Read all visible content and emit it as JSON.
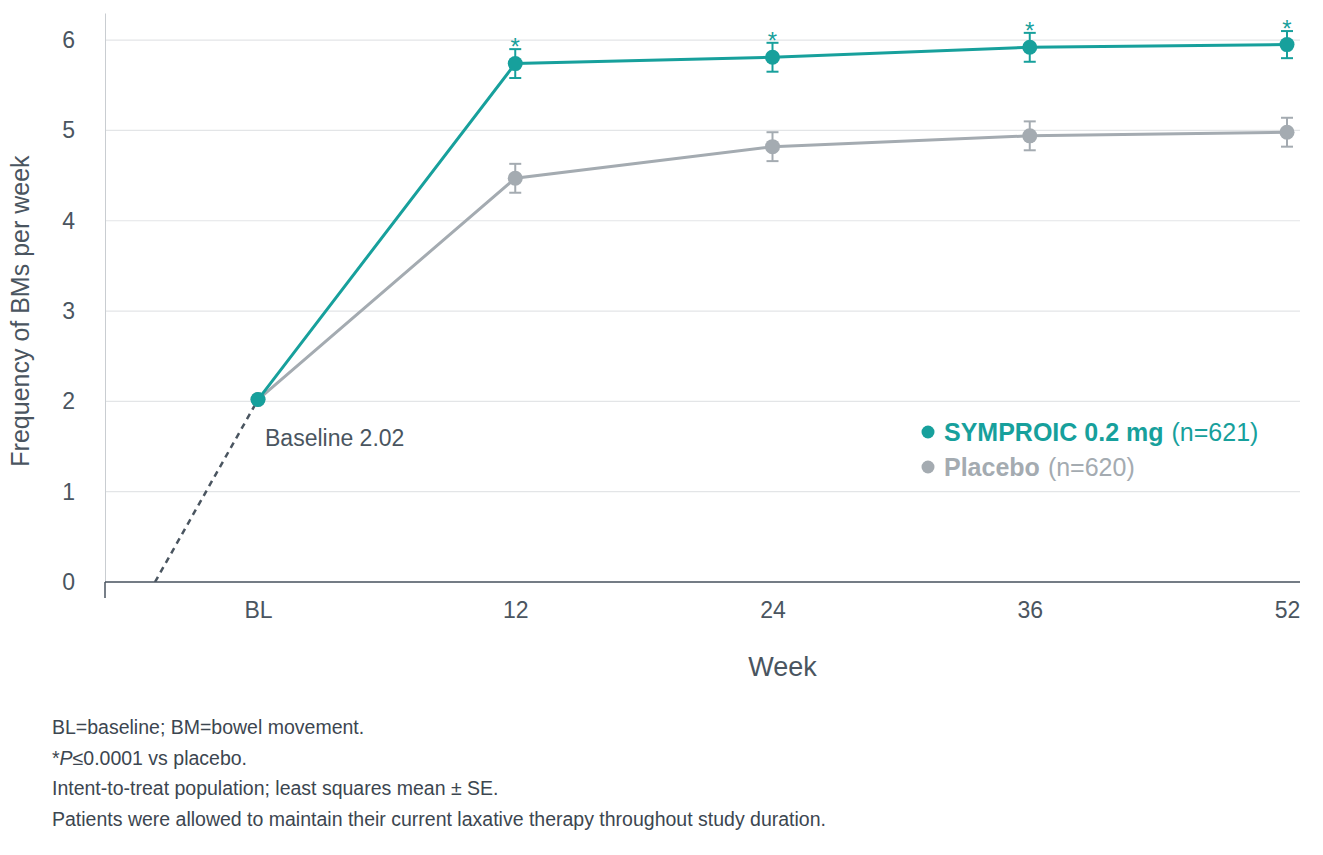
{
  "chart_data": {
    "type": "line",
    "x_label": "Week",
    "y_label": "Frequency of BMs per week",
    "categories": [
      "BL",
      "12",
      "24",
      "36",
      "52"
    ],
    "series": [
      {
        "name": "SYMPROIC 0.2 mg",
        "legend_note": "(n=621)",
        "color": "#17a09c",
        "marker": "circle",
        "values": [
          2.02,
          5.74,
          5.81,
          5.92,
          5.95
        ],
        "errors": [
          null,
          0.16,
          0.16,
          0.16,
          0.15
        ],
        "significance": [
          null,
          "*",
          "*",
          "*",
          "*"
        ]
      },
      {
        "name": "Placebo",
        "legend_note": "(n=620)",
        "color": "#a4abb1",
        "marker": "circle",
        "values": [
          2.02,
          4.47,
          4.82,
          4.94,
          4.98
        ],
        "errors": [
          null,
          0.16,
          0.16,
          0.16,
          0.16
        ]
      }
    ],
    "annotations": [
      "Baseline 2.02"
    ],
    "notes": [
      "BL=baseline; BM=bowel movement.",
      "*P≤0.0001 vs placebo.",
      "Intent-to-treat population; least squares mean ± SE.",
      "Patients were allowed to maintain their current laxative therapy throughout study duration."
    ],
    "ylim": [
      0,
      6.3
    ],
    "yticks": [
      0,
      1,
      2,
      3,
      4,
      5,
      6
    ],
    "grid": true,
    "legend": "lower right"
  }
}
